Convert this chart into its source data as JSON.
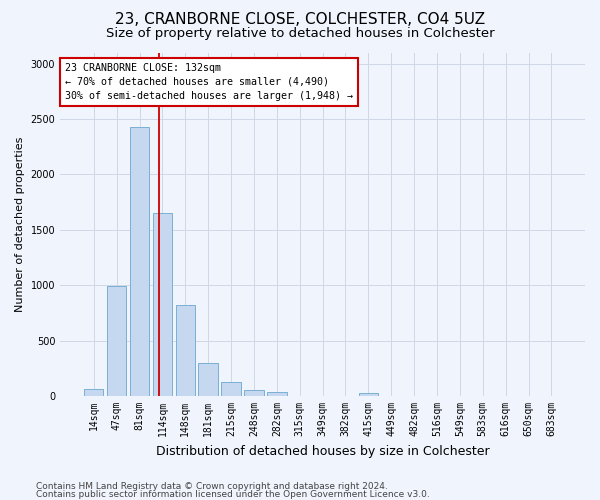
{
  "title": "23, CRANBORNE CLOSE, COLCHESTER, CO4 5UZ",
  "subtitle": "Size of property relative to detached houses in Colchester",
  "xlabel": "Distribution of detached houses by size in Colchester",
  "ylabel": "Number of detached properties",
  "categories": [
    "14sqm",
    "47sqm",
    "81sqm",
    "114sqm",
    "148sqm",
    "181sqm",
    "215sqm",
    "248sqm",
    "282sqm",
    "315sqm",
    "349sqm",
    "382sqm",
    "415sqm",
    "449sqm",
    "482sqm",
    "516sqm",
    "549sqm",
    "583sqm",
    "616sqm",
    "650sqm",
    "683sqm"
  ],
  "values": [
    60,
    990,
    2430,
    1650,
    820,
    300,
    125,
    55,
    40,
    0,
    0,
    0,
    30,
    0,
    0,
    0,
    0,
    0,
    0,
    0,
    0
  ],
  "bar_color": "#c5d8ef",
  "bar_edge_color": "#7bafd4",
  "vline_color": "#cc0000",
  "vline_x": 3.0,
  "annotation_line1": "23 CRANBORNE CLOSE: 132sqm",
  "annotation_line2": "← 70% of detached houses are smaller (4,490)",
  "annotation_line3": "30% of semi-detached houses are larger (1,948) →",
  "annotation_box_color": "#ffffff",
  "annotation_box_edge": "#cc0000",
  "ylim": [
    0,
    3100
  ],
  "yticks": [
    0,
    500,
    1000,
    1500,
    2000,
    2500,
    3000
  ],
  "footer1": "Contains HM Land Registry data © Crown copyright and database right 2024.",
  "footer2": "Contains public sector information licensed under the Open Government Licence v3.0.",
  "bg_color": "#f0f4fc",
  "plot_bg_color": "#f0f4fc",
  "grid_color": "#d0d8e8",
  "title_fontsize": 11,
  "subtitle_fontsize": 9.5,
  "xlabel_fontsize": 9,
  "ylabel_fontsize": 8,
  "tick_fontsize": 7,
  "footer_fontsize": 6.5
}
